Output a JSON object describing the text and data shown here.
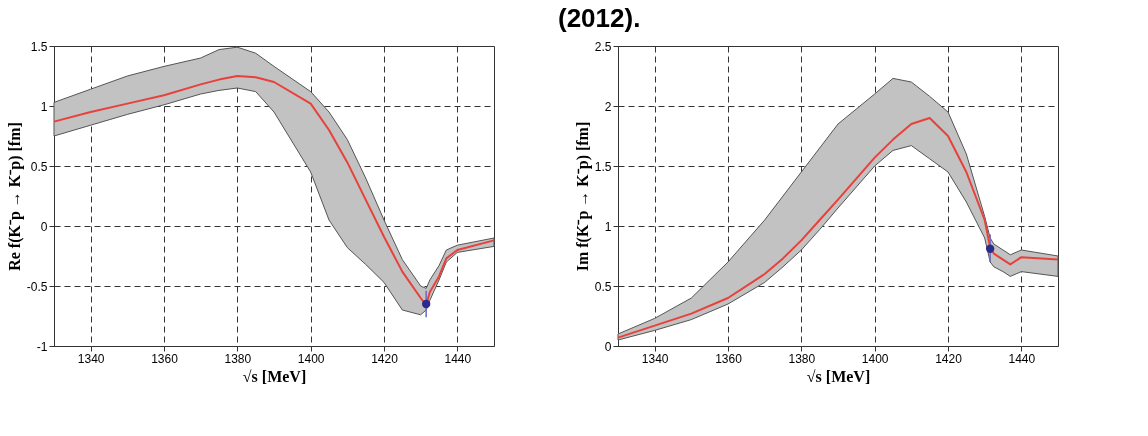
{
  "chart_data": [
    {
      "type": "line",
      "xlabel": "√s [MeV]",
      "ylabel": "Re f(K⁻p → K⁻p) [fm]",
      "xlim": [
        1330,
        1450
      ],
      "xticks": [
        1340,
        1360,
        1380,
        1400,
        1420,
        1440
      ],
      "ylim": [
        -1,
        1.5
      ],
      "yticks": [
        -1,
        -0.5,
        0,
        0.5,
        1,
        1.5
      ],
      "grid": true,
      "series": [
        {
          "color": "#e8413c",
          "x": [
            1330,
            1340,
            1350,
            1360,
            1370,
            1375,
            1380,
            1385,
            1390,
            1400,
            1405,
            1410,
            1415,
            1420,
            1425,
            1430,
            1431.5,
            1432.5,
            1435,
            1437,
            1440,
            1450
          ],
          "values": [
            0.87,
            0.95,
            1.02,
            1.09,
            1.18,
            1.22,
            1.25,
            1.24,
            1.2,
            1.02,
            0.8,
            0.53,
            0.22,
            -0.09,
            -0.38,
            -0.6,
            -0.66,
            -0.55,
            -0.42,
            -0.27,
            -0.2,
            -0.12
          ],
          "upper": [
            1.03,
            1.14,
            1.25,
            1.33,
            1.4,
            1.47,
            1.49,
            1.44,
            1.33,
            1.12,
            0.95,
            0.72,
            0.4,
            0.05,
            -0.28,
            -0.5,
            -0.52,
            -0.45,
            -0.33,
            -0.2,
            -0.16,
            -0.1
          ],
          "lower": [
            0.75,
            0.84,
            0.93,
            1.01,
            1.1,
            1.13,
            1.15,
            1.12,
            0.95,
            0.45,
            0.05,
            -0.18,
            -0.32,
            -0.47,
            -0.7,
            -0.74,
            -0.7,
            -0.62,
            -0.45,
            -0.3,
            -0.22,
            -0.17
          ]
        },
        {
          "type": "scatter",
          "color": "#2b2b8c",
          "x": [
            1431.5
          ],
          "values": [
            -0.65
          ],
          "errors": [
            [
              -0.76,
              -0.54
            ]
          ]
        }
      ]
    },
    {
      "type": "line",
      "xlabel": "√s [MeV]",
      "ylabel": "Im f(K⁻p → K⁻p) [fm]",
      "xlim": [
        1330,
        1450
      ],
      "xticks": [
        1340,
        1360,
        1380,
        1400,
        1420,
        1440
      ],
      "ylim": [
        0,
        2.5
      ],
      "yticks": [
        0,
        0.5,
        1,
        1.5,
        2,
        2.5
      ],
      "grid": true,
      "annotations": [
        "(2012)."
      ],
      "series": [
        {
          "color": "#e8413c",
          "x": [
            1330,
            1340,
            1350,
            1360,
            1370,
            1375,
            1380,
            1385,
            1390,
            1400,
            1405,
            1410,
            1415,
            1420,
            1425,
            1430,
            1431.5,
            1432.5,
            1435,
            1437,
            1440,
            1450
          ],
          "values": [
            0.07,
            0.17,
            0.27,
            0.4,
            0.6,
            0.73,
            0.88,
            1.05,
            1.22,
            1.57,
            1.72,
            1.85,
            1.9,
            1.75,
            1.45,
            1.05,
            0.82,
            0.77,
            0.72,
            0.68,
            0.74,
            0.72
          ],
          "upper": [
            0.1,
            0.23,
            0.4,
            0.7,
            1.05,
            1.25,
            1.45,
            1.65,
            1.85,
            2.1,
            2.23,
            2.2,
            2.08,
            1.95,
            1.6,
            1.08,
            0.9,
            0.85,
            0.8,
            0.76,
            0.8,
            0.75
          ],
          "lower": [
            0.05,
            0.13,
            0.22,
            0.35,
            0.53,
            0.66,
            0.8,
            0.97,
            1.15,
            1.5,
            1.63,
            1.67,
            1.56,
            1.45,
            1.2,
            0.9,
            0.7,
            0.66,
            0.62,
            0.58,
            0.62,
            0.58
          ]
        },
        {
          "type": "scatter",
          "color": "#2b2b8c",
          "x": [
            1431.5
          ],
          "values": [
            0.81
          ],
          "errors": [
            [
              0.7,
              0.93
            ]
          ]
        }
      ]
    }
  ]
}
